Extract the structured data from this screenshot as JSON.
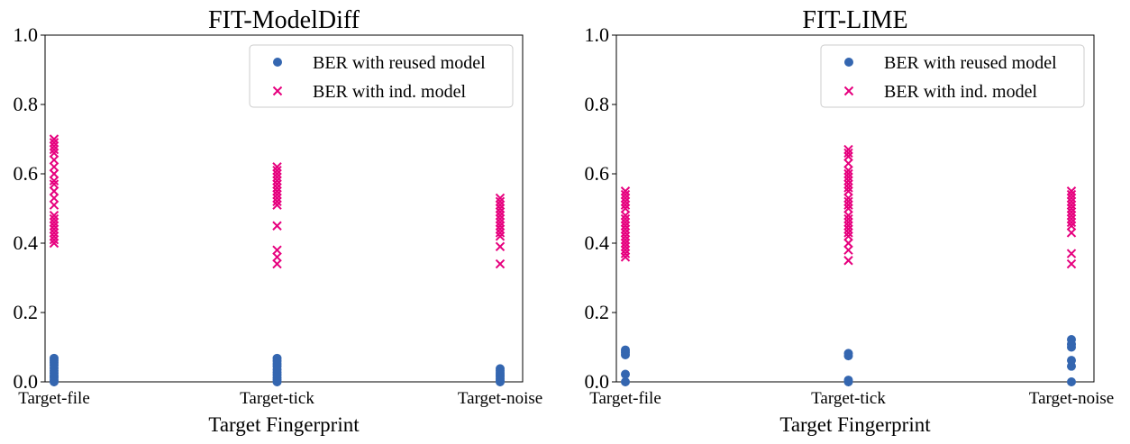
{
  "chart_data": [
    {
      "type": "scatter",
      "title": "FIT-ModelDiff",
      "xlabel": "Target Fingerprint",
      "ylabel": "",
      "categories": [
        "Target-file",
        "Target-tick",
        "Target-noise"
      ],
      "ylim": [
        0,
        1
      ],
      "yticks": [
        "0.0",
        "0.2",
        "0.4",
        "0.6",
        "0.8",
        "1.0"
      ],
      "grid": false,
      "legend_position": "upper-right",
      "series": [
        {
          "name": "BER with reused model",
          "marker": "circle",
          "color": "#3466b0",
          "values": [
            [
              0.0,
              0.005,
              0.012,
              0.018,
              0.025,
              0.032,
              0.04,
              0.048,
              0.055,
              0.062,
              0.068
            ],
            [
              0.0,
              0.006,
              0.012,
              0.02,
              0.028,
              0.036,
              0.045,
              0.052,
              0.06,
              0.068
            ],
            [
              0.0,
              0.004,
              0.009,
              0.015,
              0.02,
              0.026,
              0.032,
              0.038
            ]
          ]
        },
        {
          "name": "BER with ind. model",
          "marker": "x",
          "color": "#e6007e",
          "values": [
            [
              0.4,
              0.41,
              0.42,
              0.43,
              0.44,
              0.45,
              0.46,
              0.47,
              0.48,
              0.51,
              0.53,
              0.55,
              0.57,
              0.58,
              0.6,
              0.62,
              0.64,
              0.66,
              0.67,
              0.68,
              0.69,
              0.7
            ],
            [
              0.34,
              0.36,
              0.38,
              0.45,
              0.51,
              0.52,
              0.53,
              0.54,
              0.55,
              0.56,
              0.57,
              0.58,
              0.59,
              0.6,
              0.61,
              0.62
            ],
            [
              0.34,
              0.39,
              0.42,
              0.43,
              0.44,
              0.45,
              0.46,
              0.47,
              0.48,
              0.49,
              0.5,
              0.51,
              0.52,
              0.53
            ]
          ]
        }
      ]
    },
    {
      "type": "scatter",
      "title": "FIT-LIME",
      "xlabel": "Target Fingerprint",
      "ylabel": "",
      "categories": [
        "Target-file",
        "Target-tick",
        "Target-noise"
      ],
      "ylim": [
        0,
        1
      ],
      "yticks": [
        "0.0",
        "0.2",
        "0.4",
        "0.6",
        "0.8",
        "1.0"
      ],
      "grid": false,
      "legend_position": "upper-right",
      "series": [
        {
          "name": "BER with reused model",
          "marker": "circle",
          "color": "#3466b0",
          "values": [
            [
              0.0,
              0.022,
              0.078,
              0.085,
              0.092
            ],
            [
              0.0,
              0.005,
              0.075,
              0.082
            ],
            [
              0.0,
              0.045,
              0.062,
              0.1,
              0.108,
              0.122
            ]
          ]
        },
        {
          "name": "BER with ind. model",
          "marker": "x",
          "color": "#e6007e",
          "values": [
            [
              0.36,
              0.37,
              0.38,
              0.39,
              0.4,
              0.41,
              0.42,
              0.43,
              0.44,
              0.45,
              0.46,
              0.47,
              0.48,
              0.5,
              0.51,
              0.52,
              0.53,
              0.54,
              0.55
            ],
            [
              0.35,
              0.38,
              0.4,
              0.42,
              0.43,
              0.44,
              0.45,
              0.46,
              0.47,
              0.48,
              0.5,
              0.51,
              0.52,
              0.53,
              0.55,
              0.56,
              0.57,
              0.58,
              0.59,
              0.6,
              0.61,
              0.63,
              0.65,
              0.66,
              0.67
            ],
            [
              0.34,
              0.37,
              0.43,
              0.45,
              0.46,
              0.47,
              0.48,
              0.49,
              0.5,
              0.51,
              0.52,
              0.53,
              0.54,
              0.55
            ]
          ]
        }
      ]
    }
  ]
}
